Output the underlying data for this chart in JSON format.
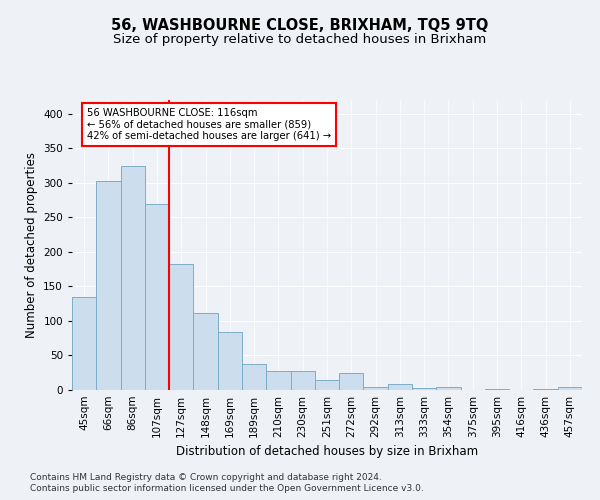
{
  "title1": "56, WASHBOURNE CLOSE, BRIXHAM, TQ5 9TQ",
  "title2": "Size of property relative to detached houses in Brixham",
  "xlabel": "Distribution of detached houses by size in Brixham",
  "ylabel": "Number of detached properties",
  "categories": [
    "45sqm",
    "66sqm",
    "86sqm",
    "107sqm",
    "127sqm",
    "148sqm",
    "169sqm",
    "189sqm",
    "210sqm",
    "230sqm",
    "251sqm",
    "272sqm",
    "292sqm",
    "313sqm",
    "333sqm",
    "354sqm",
    "375sqm",
    "395sqm",
    "416sqm",
    "436sqm",
    "457sqm"
  ],
  "values": [
    135,
    303,
    325,
    270,
    182,
    112,
    84,
    38,
    28,
    28,
    15,
    24,
    5,
    9,
    3,
    5,
    0,
    1,
    0,
    1,
    4
  ],
  "bar_color": "#ccdded",
  "bar_edge_color": "#7aaec8",
  "red_line_x": 3.5,
  "annotation_line1": "56 WASHBOURNE CLOSE: 116sqm",
  "annotation_line2": "← 56% of detached houses are smaller (859)",
  "annotation_line3": "42% of semi-detached houses are larger (641) →",
  "ylim": [
    0,
    420
  ],
  "yticks": [
    0,
    50,
    100,
    150,
    200,
    250,
    300,
    350,
    400
  ],
  "footnote1": "Contains HM Land Registry data © Crown copyright and database right 2024.",
  "footnote2": "Contains public sector information licensed under the Open Government Licence v3.0.",
  "bg_color": "#eef2f7",
  "plot_bg_color": "#eef2f7",
  "title1_fontsize": 10.5,
  "title2_fontsize": 9.5,
  "axis_label_fontsize": 8.5,
  "tick_fontsize": 7.5,
  "footnote_fontsize": 6.5
}
